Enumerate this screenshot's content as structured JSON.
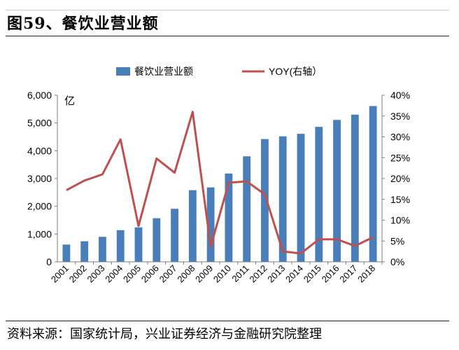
{
  "title": "图59、餐饮业营业额",
  "source": "资料来源：国家统计局，兴业证券经济与金融研究院整理",
  "colors": {
    "bar": "#4a7ebb",
    "line": "#c0504d"
  },
  "chart_data": {
    "type": "bar",
    "categories": [
      "2001",
      "2002",
      "2003",
      "2004",
      "2005",
      "2006",
      "2007",
      "2008",
      "2009",
      "2010",
      "2011",
      "2012",
      "2013",
      "2014",
      "2015",
      "2016",
      "2017",
      "2018"
    ],
    "series": [
      {
        "name": "餐饮业营业额",
        "type": "bar",
        "axis": "left",
        "values": [
          620,
          740,
          900,
          1140,
          1240,
          1570,
          1910,
          2580,
          2680,
          3180,
          3800,
          4420,
          4520,
          4610,
          4860,
          5110,
          5300,
          5610
        ]
      },
      {
        "name": "YOY(右轴）",
        "type": "line",
        "axis": "right",
        "values": [
          17.2,
          19.5,
          21.0,
          29.4,
          8.6,
          24.8,
          21.4,
          36.0,
          3.6,
          19.0,
          19.3,
          16.2,
          2.5,
          2.0,
          5.4,
          5.4,
          3.8,
          5.9
        ]
      }
    ],
    "y_left": {
      "unit_label": "亿",
      "min": 0,
      "max": 6000,
      "ticks": [
        "0",
        "1,000",
        "2,000",
        "3,000",
        "4,000",
        "5,000",
        "6,000"
      ]
    },
    "y_right": {
      "min": 0,
      "max": 40,
      "ticks": [
        "0%",
        "5%",
        "10%",
        "15%",
        "20%",
        "25%",
        "30%",
        "35%",
        "40%"
      ]
    },
    "legend": "top-center",
    "grid": false
  }
}
